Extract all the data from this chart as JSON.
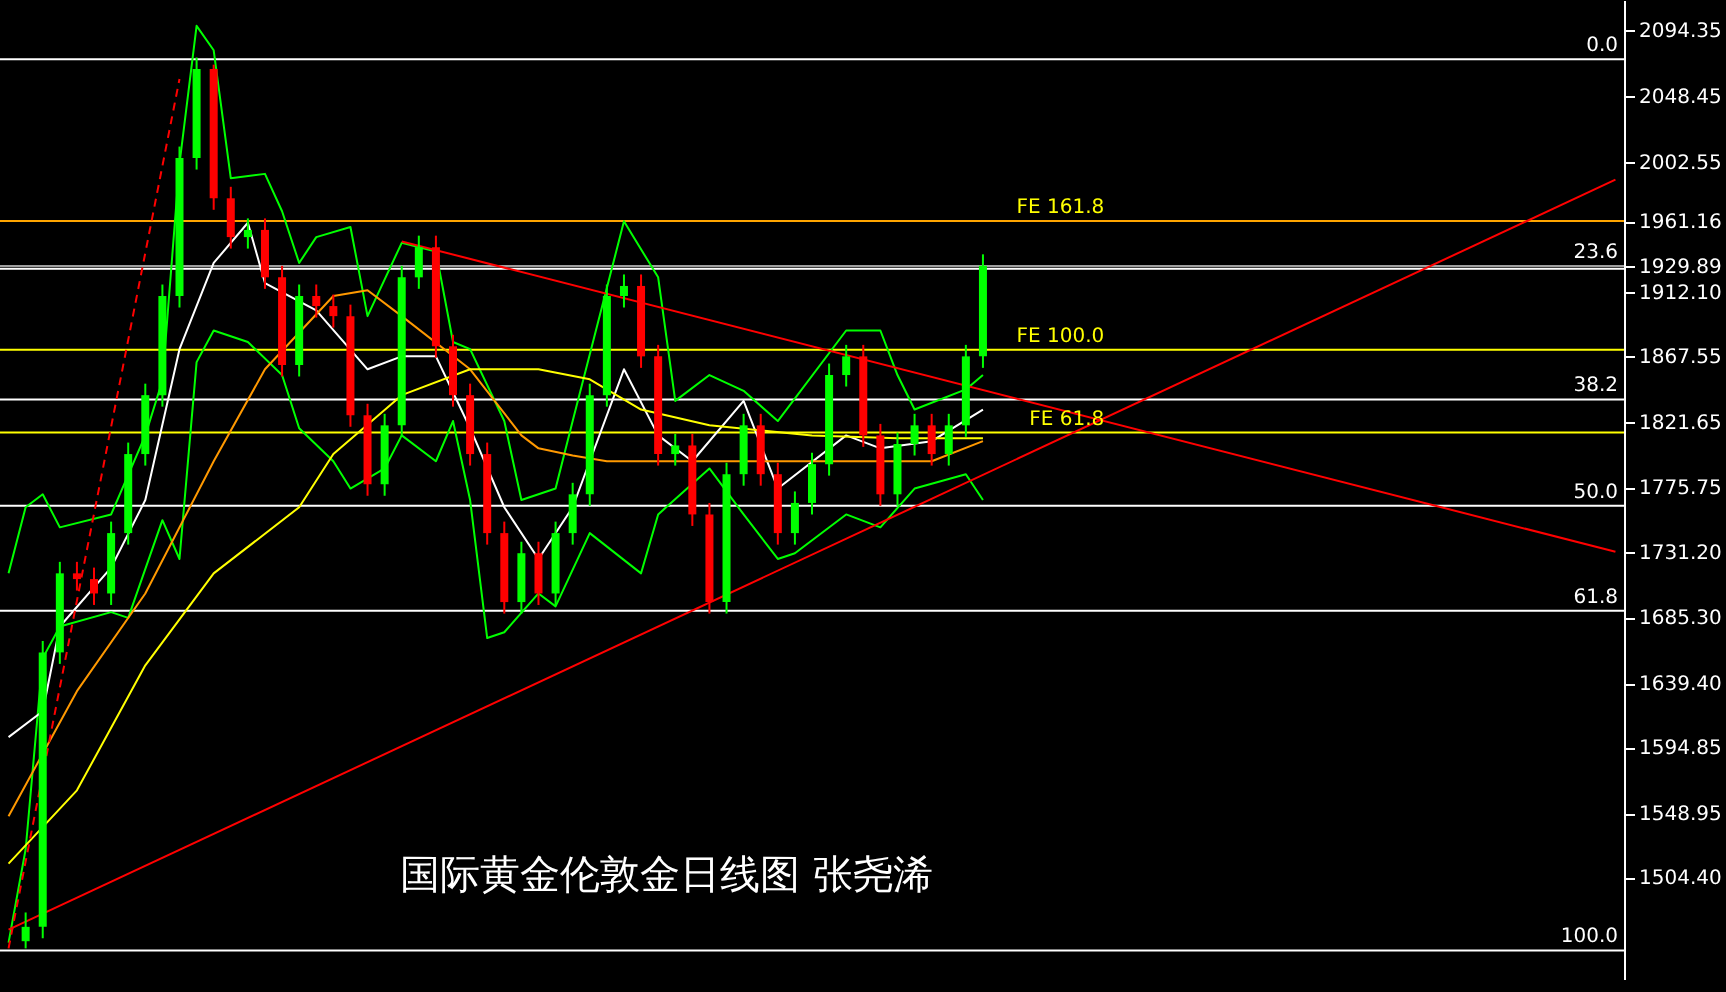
{
  "chart_data": {
    "type": "candlestick",
    "title": "国际黄金伦敦金日线图  张尧浠",
    "categories": [
      null,
      null,
      null,
      null,
      null,
      null,
      null,
      null,
      null,
      null,
      null,
      null,
      null,
      null,
      null,
      null,
      null,
      null,
      null,
      null,
      null,
      null,
      null,
      null,
      null,
      null,
      null,
      null,
      null,
      null,
      null,
      null,
      null,
      null,
      null,
      null,
      null,
      null,
      null,
      null,
      null,
      null,
      null,
      null,
      null,
      null,
      null,
      null,
      null,
      null,
      null,
      null,
      null,
      null,
      null,
      null,
      null,
      null,
      null,
      null,
      null,
      null,
      null,
      null,
      null,
      null,
      null,
      null,
      null,
      null,
      null,
      null,
      null,
      null,
      null,
      null,
      null,
      null,
      null,
      null,
      null,
      null,
      null,
      null,
      null,
      null,
      null,
      null,
      null,
      null,
      null,
      null,
      null,
      null,
      null
    ],
    "ohlc": [
      null,
      [
        1460,
        1480,
        1455,
        1470
      ],
      [
        1470,
        1669,
        1462,
        1661
      ],
      [
        1661,
        1724,
        1653,
        1716
      ],
      [
        1716,
        1724,
        1704,
        1712
      ],
      [
        1712,
        1720,
        1694,
        1702
      ],
      [
        1702,
        1752,
        1694,
        1744
      ],
      [
        1744,
        1807,
        1736,
        1799
      ],
      [
        1799,
        1848,
        1791,
        1840
      ],
      [
        1840,
        1917,
        1832,
        1909
      ],
      [
        1909,
        2013,
        1901,
        2005
      ],
      [
        2005,
        2075,
        1997,
        2067
      ],
      [
        2067,
        2070,
        1969,
        1977
      ],
      [
        1977,
        1985,
        1942,
        1950
      ],
      [
        1950,
        1963,
        1942,
        1955
      ],
      [
        1955,
        1963,
        1914,
        1922
      ],
      [
        1922,
        1930,
        1853,
        1861
      ],
      [
        1861,
        1917,
        1853,
        1909
      ],
      [
        1909,
        1917,
        1894,
        1902
      ],
      [
        1902,
        1910,
        1887,
        1895
      ],
      [
        1895,
        1903,
        1818,
        1826
      ],
      [
        1826,
        1834,
        1770,
        1778
      ],
      [
        1778,
        1827,
        1770,
        1819
      ],
      [
        1819,
        1930,
        1811,
        1922
      ],
      [
        1922,
        1951,
        1914,
        1943
      ],
      [
        1943,
        1951,
        1866,
        1874
      ],
      [
        1874,
        1882,
        1832,
        1840
      ],
      [
        1840,
        1848,
        1791,
        1799
      ],
      [
        1799,
        1807,
        1736,
        1744
      ],
      [
        1744,
        1752,
        1688,
        1696
      ],
      [
        1696,
        1738,
        1688,
        1730
      ],
      [
        1730,
        1738,
        1694,
        1702
      ],
      [
        1702,
        1752,
        1694,
        1744
      ],
      [
        1744,
        1779,
        1736,
        1771
      ],
      [
        1771,
        1848,
        1763,
        1840
      ],
      [
        1840,
        1917,
        1832,
        1909
      ],
      [
        1909,
        1924,
        1901,
        1916
      ],
      [
        1916,
        1924,
        1859,
        1867
      ],
      [
        1867,
        1875,
        1791,
        1799
      ],
      [
        1799,
        1813,
        1791,
        1805
      ],
      [
        1805,
        1813,
        1749,
        1757
      ],
      [
        1757,
        1765,
        1688,
        1696
      ],
      [
        1696,
        1793,
        1688,
        1785
      ],
      [
        1785,
        1827,
        1777,
        1819
      ],
      [
        1819,
        1827,
        1777,
        1785
      ],
      [
        1785,
        1793,
        1736,
        1744
      ],
      [
        1744,
        1773,
        1736,
        1765
      ],
      [
        1765,
        1800,
        1757,
        1792
      ],
      [
        1792,
        1862,
        1784,
        1854
      ],
      [
        1854,
        1875,
        1846,
        1867
      ],
      [
        1867,
        1875,
        1804,
        1812
      ],
      [
        1812,
        1820,
        1763,
        1771
      ],
      [
        1771,
        1814,
        1763,
        1806
      ],
      [
        1806,
        1827,
        1798,
        1819
      ],
      [
        1819,
        1827,
        1791,
        1799
      ],
      [
        1799,
        1827,
        1791,
        1819
      ],
      [
        1819,
        1875,
        1811,
        1867
      ],
      [
        1867,
        1938,
        1859,
        1930
      ],
      null,
      null,
      null,
      null,
      null,
      null,
      null,
      null,
      null,
      null,
      null,
      null,
      null,
      null,
      null,
      null,
      null,
      null,
      null,
      null,
      null,
      null,
      null,
      null,
      null,
      null,
      null,
      null,
      null,
      null,
      null,
      null,
      null,
      null,
      null,
      null,
      null
    ],
    "series": [
      {
        "type": "line",
        "color": "#00ff00",
        "values": [
          1716,
          1762,
          1771,
          1748,
          null,
          null,
          1757,
          null,
          1812,
          1850,
          2001,
          2097,
          2080,
          1991,
          null,
          1994,
          1968,
          1932,
          1950,
          null,
          1957,
          1895,
          null,
          1946,
          null,
          1940,
          1877,
          1872,
          null,
          1822,
          1767,
          null,
          1775,
          1822,
          null,
          null,
          1961,
          null,
          1922,
          1836,
          null,
          1854,
          null,
          1843,
          null,
          1822,
          null,
          null,
          null,
          1885,
          null,
          1885,
          1854,
          1830,
          null,
          null,
          1844,
          1854,
          null,
          null,
          null,
          null,
          null,
          null,
          null,
          null,
          null,
          null,
          null,
          null,
          null,
          null,
          null,
          null,
          null,
          null,
          null,
          null,
          null,
          null,
          null,
          null,
          null,
          null,
          null,
          null,
          null,
          null,
          null,
          null,
          null,
          null,
          null,
          null,
          null
        ]
      },
      {
        "type": "line",
        "color": "#00ff00",
        "values": [
          1459,
          1524,
          1657,
          1679,
          null,
          null,
          1689,
          1685,
          null,
          1753,
          1726,
          1863,
          1885,
          null,
          1877,
          null,
          1854,
          1817,
          null,
          1794,
          1775,
          null,
          1789,
          1812,
          null,
          1794,
          1822,
          1767,
          1671,
          1675,
          null,
          1702,
          1693,
          null,
          1744,
          null,
          null,
          1716,
          1757,
          null,
          null,
          1789,
          null,
          1757,
          null,
          1726,
          1730,
          null,
          null,
          1757,
          null,
          1748,
          null,
          1775,
          null,
          null,
          1785,
          1767,
          null,
          null,
          null,
          null,
          null,
          null,
          null,
          null,
          null,
          null,
          null,
          null,
          null,
          null,
          null,
          null,
          null,
          null,
          null,
          null,
          null,
          null,
          null,
          null,
          null,
          null,
          null,
          null,
          null,
          null,
          null,
          null,
          null,
          null,
          null,
          null,
          null
        ]
      },
      {
        "type": "line",
        "color": "#ffffff",
        "values": [
          1602,
          null,
          1620,
          1679,
          null,
          null,
          1720,
          null,
          1767,
          null,
          1872,
          null,
          1932,
          null,
          1960,
          1918,
          null,
          null,
          1899,
          null,
          null,
          1858,
          null,
          1867,
          null,
          1867,
          null,
          1817,
          null,
          1762,
          null,
          1726,
          null,
          1762,
          null,
          null,
          1858,
          null,
          1812,
          null,
          1794,
          null,
          null,
          1836,
          null,
          1775,
          null,
          null,
          null,
          1812,
          null,
          1803,
          null,
          null,
          1808,
          null,
          null,
          1830,
          null,
          null,
          null,
          null,
          null,
          null,
          null,
          null,
          null,
          null,
          null,
          null,
          null,
          null,
          null,
          null,
          null,
          null,
          null,
          null,
          null,
          null,
          null,
          null,
          null,
          null,
          null,
          null,
          null,
          null,
          null,
          null,
          null,
          null,
          null,
          null,
          null
        ]
      },
      {
        "type": "line",
        "color": "#ff9900",
        "values": [
          1547,
          null,
          null,
          null,
          1634,
          null,
          null,
          null,
          1702,
          null,
          null,
          null,
          1794,
          null,
          null,
          1858,
          null,
          null,
          null,
          1909,
          null,
          1913,
          null,
          1895,
          null,
          null,
          null,
          1858,
          null,
          null,
          1812,
          1803,
          null,
          1798,
          null,
          1794,
          null,
          null,
          null,
          1794,
          null,
          null,
          null,
          null,
          1794,
          null,
          null,
          null,
          1794,
          null,
          null,
          null,
          null,
          null,
          1794,
          null,
          null,
          1808,
          null,
          null,
          null,
          null,
          null,
          null,
          null,
          null,
          null,
          null,
          null,
          null,
          null,
          null,
          null,
          null,
          null,
          null,
          null,
          null,
          null,
          null,
          null,
          null,
          null,
          null,
          null,
          null,
          null,
          null,
          null,
          null,
          null,
          null,
          null,
          null,
          null
        ]
      },
      {
        "type": "line",
        "color": "#ffff00",
        "values": [
          1514,
          null,
          null,
          null,
          1565,
          null,
          null,
          null,
          1652,
          null,
          null,
          null,
          1716,
          null,
          null,
          null,
          null,
          1762,
          null,
          1799,
          null,
          null,
          null,
          1840,
          null,
          null,
          null,
          1858,
          null,
          null,
          null,
          1858,
          null,
          null,
          1851,
          null,
          null,
          1830,
          null,
          null,
          null,
          1819,
          null,
          null,
          null,
          null,
          null,
          1812,
          null,
          null,
          null,
          null,
          1810,
          null,
          null,
          null,
          null,
          1810,
          null,
          null,
          null,
          null,
          null,
          null,
          null,
          null,
          null,
          null,
          null,
          null,
          null,
          null,
          null,
          null,
          null,
          null,
          null,
          null,
          null,
          null,
          null,
          null,
          null,
          null,
          null,
          null,
          null,
          null,
          null,
          null,
          null,
          null,
          null,
          null,
          null
        ]
      },
      {
        "type": "line",
        "color": "#ff0000",
        "values": [
          1468,
          null,
          null,
          null,
          null,
          null,
          null,
          null,
          null,
          null,
          null,
          null,
          null,
          null,
          null,
          null,
          null,
          null,
          null,
          null,
          null,
          null,
          null,
          null,
          null,
          null,
          null,
          null,
          null,
          null,
          null,
          null,
          null,
          null,
          null,
          null,
          null,
          null,
          null,
          null,
          null,
          null,
          null,
          null,
          null,
          null,
          null,
          null,
          null,
          null,
          null,
          null,
          null,
          null,
          null,
          null,
          null,
          null,
          null,
          null,
          null,
          null,
          null,
          null,
          null,
          null,
          null,
          null,
          null,
          null,
          null,
          null,
          null,
          null,
          null,
          null,
          null,
          null,
          null,
          null,
          null,
          null,
          null,
          null,
          null,
          null,
          null,
          null,
          null,
          null,
          null,
          null,
          null,
          null,
          1990
        ]
      },
      {
        "type": "line",
        "color": "#ff0000",
        "values": [
          null,
          null,
          null,
          null,
          null,
          null,
          null,
          null,
          null,
          null,
          null,
          null,
          null,
          null,
          null,
          null,
          null,
          null,
          null,
          null,
          null,
          null,
          null,
          1947,
          null,
          null,
          null,
          null,
          null,
          null,
          null,
          null,
          null,
          null,
          null,
          null,
          null,
          null,
          null,
          null,
          null,
          null,
          null,
          null,
          null,
          null,
          null,
          null,
          null,
          null,
          null,
          null,
          null,
          null,
          null,
          null,
          null,
          null,
          null,
          null,
          null,
          null,
          null,
          null,
          null,
          null,
          null,
          null,
          null,
          null,
          null,
          null,
          null,
          null,
          null,
          null,
          null,
          null,
          null,
          null,
          null,
          null,
          null,
          null,
          null,
          null,
          null,
          null,
          null,
          null,
          null,
          null,
          null,
          null,
          1731
        ]
      },
      {
        "type": "line",
        "color": "#ff0000",
        "line_style": "dashed",
        "values": [
          1455,
          null,
          null,
          null,
          null,
          null,
          null,
          null,
          null,
          null,
          2060,
          null,
          null,
          null,
          null,
          null,
          null,
          null,
          null,
          null,
          null,
          null,
          null,
          null,
          null,
          null,
          null,
          null,
          null,
          null,
          null,
          null,
          null,
          null,
          null,
          null,
          null,
          null,
          null,
          null,
          null,
          null,
          null,
          null,
          null,
          null,
          null,
          null,
          null,
          null,
          null,
          null,
          null,
          null,
          null,
          null,
          null,
          null,
          null,
          null,
          null,
          null,
          null,
          null,
          null,
          null,
          null,
          null,
          null,
          null,
          null,
          null,
          null,
          null,
          null,
          null,
          null,
          null,
          null,
          null,
          null,
          null,
          null,
          null,
          null,
          null,
          null,
          null,
          null,
          null,
          null,
          null,
          null,
          null,
          null
        ]
      }
    ],
    "ylim": [
      1433,
      2115
    ],
    "yticks": [
      2094.35,
      2048.45,
      2002.55,
      1961.16,
      1929.89,
      {
        "value": 1912.1,
        "label": "1912.10"
      },
      1867.55,
      1821.65,
      1775.75,
      {
        "value": 1731.2,
        "label": "1731.20"
      },
      {
        "value": 1685.3,
        "label": "1685.30"
      },
      {
        "value": 1639.4,
        "label": "1639.40"
      },
      1594.85,
      1548.95,
      {
        "value": 1504.4,
        "label": "1504.40"
      }
    ],
    "tick_labels": "y",
    "grid": false,
    "ref_lines": [
      {
        "axis": "y",
        "value": 2073.7,
        "color": "#ffffff"
      },
      {
        "axis": "y",
        "value": 1961.16,
        "color": "#ffa500"
      },
      {
        "axis": "y",
        "value": 1929.89,
        "color": "#a0a0a0"
      },
      {
        "axis": "y",
        "value": 1928,
        "color": "#ffffff"
      },
      {
        "axis": "y",
        "value": 1837,
        "color": "#ffffff"
      },
      {
        "axis": "y",
        "value": 1763,
        "color": "#ffffff"
      },
      {
        "axis": "y",
        "value": 1690,
        "color": "#ffffff"
      },
      {
        "axis": "y",
        "value": 1453.6,
        "color": "#ffffff"
      },
      {
        "axis": "y",
        "value": 1871.6,
        "color": "#ffff00"
      },
      {
        "axis": "y",
        "value": 1814,
        "color": "#ffff00"
      }
    ],
    "annotations": [
      {
        "text": "FE 161.8",
        "y": 1961.16
      },
      {
        "text": "FE 100.0",
        "y": 1871.6
      },
      {
        "text": "FE 61.8",
        "y": 1814
      },
      {
        "text": "0.0",
        "y": 2073.7
      },
      {
        "text": "23.6",
        "y": 1929.89
      },
      {
        "text": "38.2",
        "y": 1837
      },
      {
        "text": "50.0",
        "y": 1763
      },
      {
        "text": "61.8",
        "y": 1690
      },
      {
        "text": "100.0",
        "y": 1453.6
      }
    ]
  }
}
